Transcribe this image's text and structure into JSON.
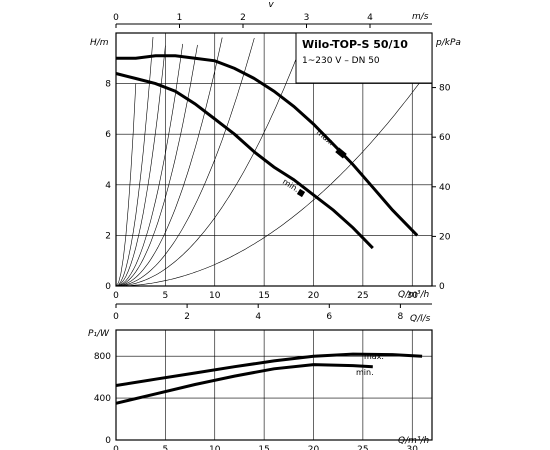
{
  "chart_data": [
    {
      "type": "line",
      "title": "Wilo-TOP-S 50/10",
      "subtitle": "1~230 V – DN 50",
      "xlabel": "Q/m³/h",
      "xlim": [
        0,
        32
      ],
      "xticks": [
        "0",
        "5",
        "10",
        "15",
        "20",
        "25",
        "30"
      ],
      "ylabel": "H/m",
      "ylim": [
        0,
        10
      ],
      "yticks": [
        "0",
        "2",
        "4",
        "6",
        "8"
      ],
      "y2label": "p/kPa",
      "y2ticks": [
        "0",
        "20",
        "40",
        "60",
        "80"
      ],
      "top_axis": {
        "label": "v",
        "unit": "m/s",
        "ticks": [
          "0",
          "1",
          "2",
          "3",
          "4"
        ]
      },
      "bottom_axis2": {
        "label": "Q/l/s",
        "ticks": [
          "0",
          "2",
          "4",
          "6",
          "8"
        ]
      },
      "grid": true,
      "series": [
        {
          "name": "max.",
          "x": [
            0,
            2,
            4,
            6,
            8,
            10,
            12,
            14,
            16,
            18,
            20,
            22,
            24,
            26,
            28,
            30.5
          ],
          "y": [
            9.0,
            9.0,
            9.1,
            9.1,
            9.0,
            8.9,
            8.6,
            8.2,
            7.7,
            7.1,
            6.4,
            5.6,
            4.8,
            3.9,
            3.0,
            2.0
          ]
        },
        {
          "name": "min.",
          "x": [
            0,
            2,
            4,
            6,
            8,
            10,
            12,
            14,
            16,
            18,
            20,
            22,
            24,
            26
          ],
          "y": [
            8.4,
            8.2,
            8.0,
            7.7,
            7.2,
            6.6,
            6.0,
            5.3,
            4.7,
            4.2,
            3.6,
            3.0,
            2.3,
            1.5
          ]
        }
      ],
      "system_curves_k": [
        2.0,
        0.7,
        0.38,
        0.21,
        0.14,
        0.085,
        0.05,
        0.027,
        0.0085
      ]
    },
    {
      "type": "line",
      "xlabel": "Q/m³/h",
      "xlim": [
        0,
        32
      ],
      "xticks": [
        "0",
        "5",
        "10",
        "15",
        "20",
        "25",
        "30"
      ],
      "ylabel": "P₁/W",
      "ylim": [
        0,
        1050
      ],
      "yticks": [
        "0",
        "400",
        "800"
      ],
      "grid": true,
      "series": [
        {
          "name": "max.",
          "x": [
            0,
            4,
            8,
            12,
            16,
            20,
            24,
            28,
            31
          ],
          "y": [
            520,
            580,
            640,
            700,
            755,
            800,
            820,
            815,
            800
          ]
        },
        {
          "name": "min.",
          "x": [
            0,
            4,
            8,
            12,
            16,
            20,
            24,
            26
          ],
          "y": [
            350,
            440,
            530,
            610,
            680,
            720,
            710,
            700
          ]
        }
      ]
    }
  ]
}
